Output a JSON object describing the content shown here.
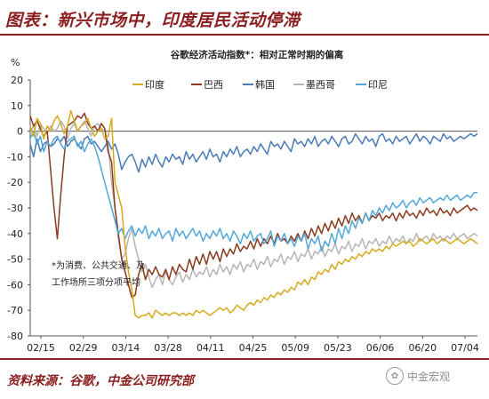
{
  "figure_title": "图表：新兴市场中，印度居民活动停滞",
  "source": "资料来源：谷歌，中金公司研究部",
  "watermark": "中金宏观",
  "chart_data": {
    "type": "line",
    "title": "谷歌经济活动指数*：相对正常时期的偏离",
    "ylabel": "%",
    "ylim": [
      -80,
      20
    ],
    "yticks": [
      20,
      10,
      0,
      -10,
      -20,
      -30,
      -40,
      -50,
      -60,
      -70,
      -80
    ],
    "grid": false,
    "legend_position": "top",
    "x_tick_labels": [
      "02/15",
      "02/29",
      "03/14",
      "03/28",
      "04/11",
      "04/25",
      "05/09",
      "05/23",
      "06/06",
      "06/20",
      "07/04"
    ],
    "annotation": [
      "*为消费、公共交通、及",
      "工作场所三项分项平均"
    ],
    "series": [
      {
        "name": "印度",
        "color": "#d6aa1e",
        "values": [
          2,
          -2,
          5,
          3,
          -3,
          2,
          0,
          4,
          6,
          3,
          -1,
          2,
          8,
          4,
          0,
          2,
          3,
          5,
          1,
          -2,
          0,
          1,
          -3,
          -2,
          5,
          -20,
          -25,
          -30,
          -45,
          -55,
          -62,
          -72,
          -73,
          -72,
          -72,
          -71,
          -73,
          -70,
          -71,
          -72,
          -71,
          -72,
          -71,
          -71,
          -72,
          -71,
          -72,
          -71,
          -72,
          -70,
          -71,
          -70,
          -71,
          -72,
          -71,
          -70,
          -69,
          -70,
          -69,
          -71,
          -70,
          -68,
          -69,
          -70,
          -68,
          -67,
          -68,
          -66,
          -67,
          -65,
          -66,
          -64,
          -65,
          -63,
          -64,
          -62,
          -63,
          -61,
          -62,
          -59,
          -60,
          -58,
          -60,
          -57,
          -58,
          -55,
          -56,
          -54,
          -55,
          -52,
          -54,
          -51,
          -52,
          -50,
          -51,
          -49,
          -50,
          -48,
          -49,
          -47,
          -48,
          -46,
          -47,
          -46,
          -47,
          -45,
          -46,
          -44,
          -45,
          -44,
          -43,
          -44,
          -43,
          -45,
          -44,
          -42,
          -43,
          -44,
          -43,
          -42,
          -44,
          -43,
          -42,
          -43,
          -44,
          -43,
          -42,
          -43,
          -44,
          -43,
          -42,
          -43,
          -44
        ]
      },
      {
        "name": "巴西",
        "color": "#8b3a1e",
        "values": [
          6,
          2,
          4,
          1,
          -2,
          0,
          -15,
          -30,
          -42,
          -25,
          -10,
          2,
          3,
          4,
          6,
          5,
          7,
          3,
          1,
          2,
          0,
          3,
          1,
          -8,
          -12,
          -30,
          -40,
          -50,
          -55,
          -60,
          -65,
          -64,
          -56,
          -52,
          -58,
          -54,
          -56,
          -53,
          -56,
          -57,
          -54,
          -58,
          -53,
          -56,
          -52,
          -54,
          -55,
          -50,
          -54,
          -49,
          -52,
          -48,
          -52,
          -47,
          -50,
          -47,
          -51,
          -46,
          -49,
          -46,
          -48,
          -44,
          -47,
          -45,
          -46,
          -43,
          -46,
          -42,
          -45,
          -42,
          -44,
          -41,
          -44,
          -40,
          -43,
          -42,
          -44,
          -41,
          -43,
          -40,
          -43,
          -39,
          -42,
          -38,
          -41,
          -37,
          -40,
          -36,
          -39,
          -35,
          -38,
          -34,
          -37,
          -33,
          -36,
          -32,
          -35,
          -33,
          -36,
          -32,
          -35,
          -33,
          -34,
          -32,
          -35,
          -33,
          -34,
          -32,
          -35,
          -32,
          -34,
          -31,
          -33,
          -32,
          -34,
          -31,
          -33,
          -30,
          -32,
          -31,
          -33,
          -30,
          -32,
          -31,
          -33,
          -30,
          -32,
          -31,
          -30,
          -29,
          -31,
          -30,
          -31
        ]
      },
      {
        "name": "韩国",
        "color": "#4a7bb7",
        "values": [
          -5,
          -10,
          -3,
          -8,
          -5,
          -4,
          -6,
          -5,
          -3,
          -4,
          -2,
          -6,
          -4,
          -3,
          -5,
          -7,
          -3,
          -2,
          -5,
          -4,
          -6,
          -8,
          -6,
          -4,
          -7,
          -5,
          -9,
          -15,
          -12,
          -10,
          -9,
          -12,
          -16,
          -11,
          -14,
          -10,
          -13,
          -9,
          -12,
          -14,
          -10,
          -12,
          -9,
          -11,
          -10,
          -13,
          -8,
          -11,
          -9,
          -12,
          -10,
          -8,
          -11,
          -7,
          -10,
          -9,
          -12,
          -8,
          -10,
          -7,
          -9,
          -6,
          -10,
          -8,
          -7,
          -9,
          -6,
          -8,
          -5,
          -7,
          -9,
          -4,
          -6,
          -5,
          -7,
          -4,
          -6,
          -8,
          -3,
          -5,
          -4,
          -6,
          -3,
          -5,
          -2,
          -6,
          -4,
          -3,
          -5,
          -2,
          -4,
          -6,
          -3,
          -2,
          -5,
          -4,
          -1,
          -3,
          -5,
          -2,
          -4,
          -3,
          -6,
          -2,
          -1,
          -4,
          -3,
          -5,
          -2,
          -4,
          -3,
          -2,
          -5,
          -3,
          -1,
          -4,
          -2,
          -3,
          -5,
          -2,
          -3,
          -4,
          -1,
          -3,
          -2,
          -4,
          -3,
          -2,
          -3,
          -2,
          -1,
          -2,
          -1
        ]
      },
      {
        "name": "墨西哥",
        "color": "#b5b5b5",
        "values": [
          0,
          2,
          -2,
          3,
          1,
          -1,
          2,
          0,
          1,
          4,
          2,
          -3,
          1,
          3,
          0,
          2,
          4,
          1,
          -2,
          2,
          3,
          1,
          0,
          -5,
          -20,
          -30,
          -42,
          -50,
          -48,
          -42,
          -38,
          -45,
          -50,
          -55,
          -52,
          -57,
          -61,
          -58,
          -56,
          -60,
          -55,
          -58,
          -60,
          -57,
          -55,
          -59,
          -56,
          -58,
          -54,
          -57,
          -55,
          -56,
          -53,
          -57,
          -54,
          -56,
          -52,
          -55,
          -53,
          -56,
          -52,
          -54,
          -51,
          -55,
          -52,
          -53,
          -50,
          -54,
          -51,
          -52,
          -49,
          -53,
          -50,
          -51,
          -48,
          -52,
          -49,
          -50,
          -47,
          -51,
          -48,
          -49,
          -46,
          -50,
          -47,
          -48,
          -45,
          -49,
          -46,
          -47,
          -44,
          -48,
          -45,
          -46,
          -43,
          -47,
          -44,
          -45,
          -42,
          -46,
          -43,
          -44,
          -42,
          -45,
          -43,
          -44,
          -41,
          -44,
          -42,
          -43,
          -41,
          -44,
          -42,
          -43,
          -40,
          -43,
          -42,
          -41,
          -43,
          -40,
          -42,
          -41,
          -43,
          -41,
          -42,
          -40,
          -42,
          -41,
          -40,
          -42,
          -41,
          -40,
          -41
        ]
      },
      {
        "name": "印尼",
        "color": "#52a8d8",
        "values": [
          -3,
          0,
          -5,
          -2,
          -8,
          -4,
          -6,
          -3,
          -2,
          -5,
          -7,
          -4,
          -3,
          -2,
          -6,
          -4,
          -8,
          -5,
          -3,
          -6,
          -10,
          -15,
          -20,
          -25,
          -30,
          -35,
          -40,
          -38,
          -42,
          -39,
          -37,
          -41,
          -38,
          -40,
          -37,
          -42,
          -39,
          -41,
          -38,
          -42,
          -40,
          -39,
          -43,
          -38,
          -41,
          -39,
          -42,
          -40,
          -38,
          -41,
          -39,
          -43,
          -40,
          -42,
          -39,
          -41,
          -38,
          -42,
          -40,
          -43,
          -39,
          -41,
          -44,
          -40,
          -42,
          -39,
          -43,
          -41,
          -40,
          -44,
          -42,
          -39,
          -45,
          -41,
          -43,
          -40,
          -44,
          -42,
          -45,
          -41,
          -43,
          -40,
          -46,
          -42,
          -44,
          -41,
          -47,
          -43,
          -45,
          -40,
          -44,
          -38,
          -42,
          -37,
          -40,
          -35,
          -38,
          -34,
          -36,
          -32,
          -35,
          -31,
          -33,
          -30,
          -32,
          -29,
          -31,
          -28,
          -30,
          -29,
          -27,
          -30,
          -28,
          -27,
          -29,
          -26,
          -28,
          -27,
          -26,
          -28,
          -27,
          -26,
          -27,
          -25,
          -27,
          -26,
          -25,
          -27,
          -26,
          -25,
          -26,
          -24,
          -24
        ]
      }
    ]
  }
}
